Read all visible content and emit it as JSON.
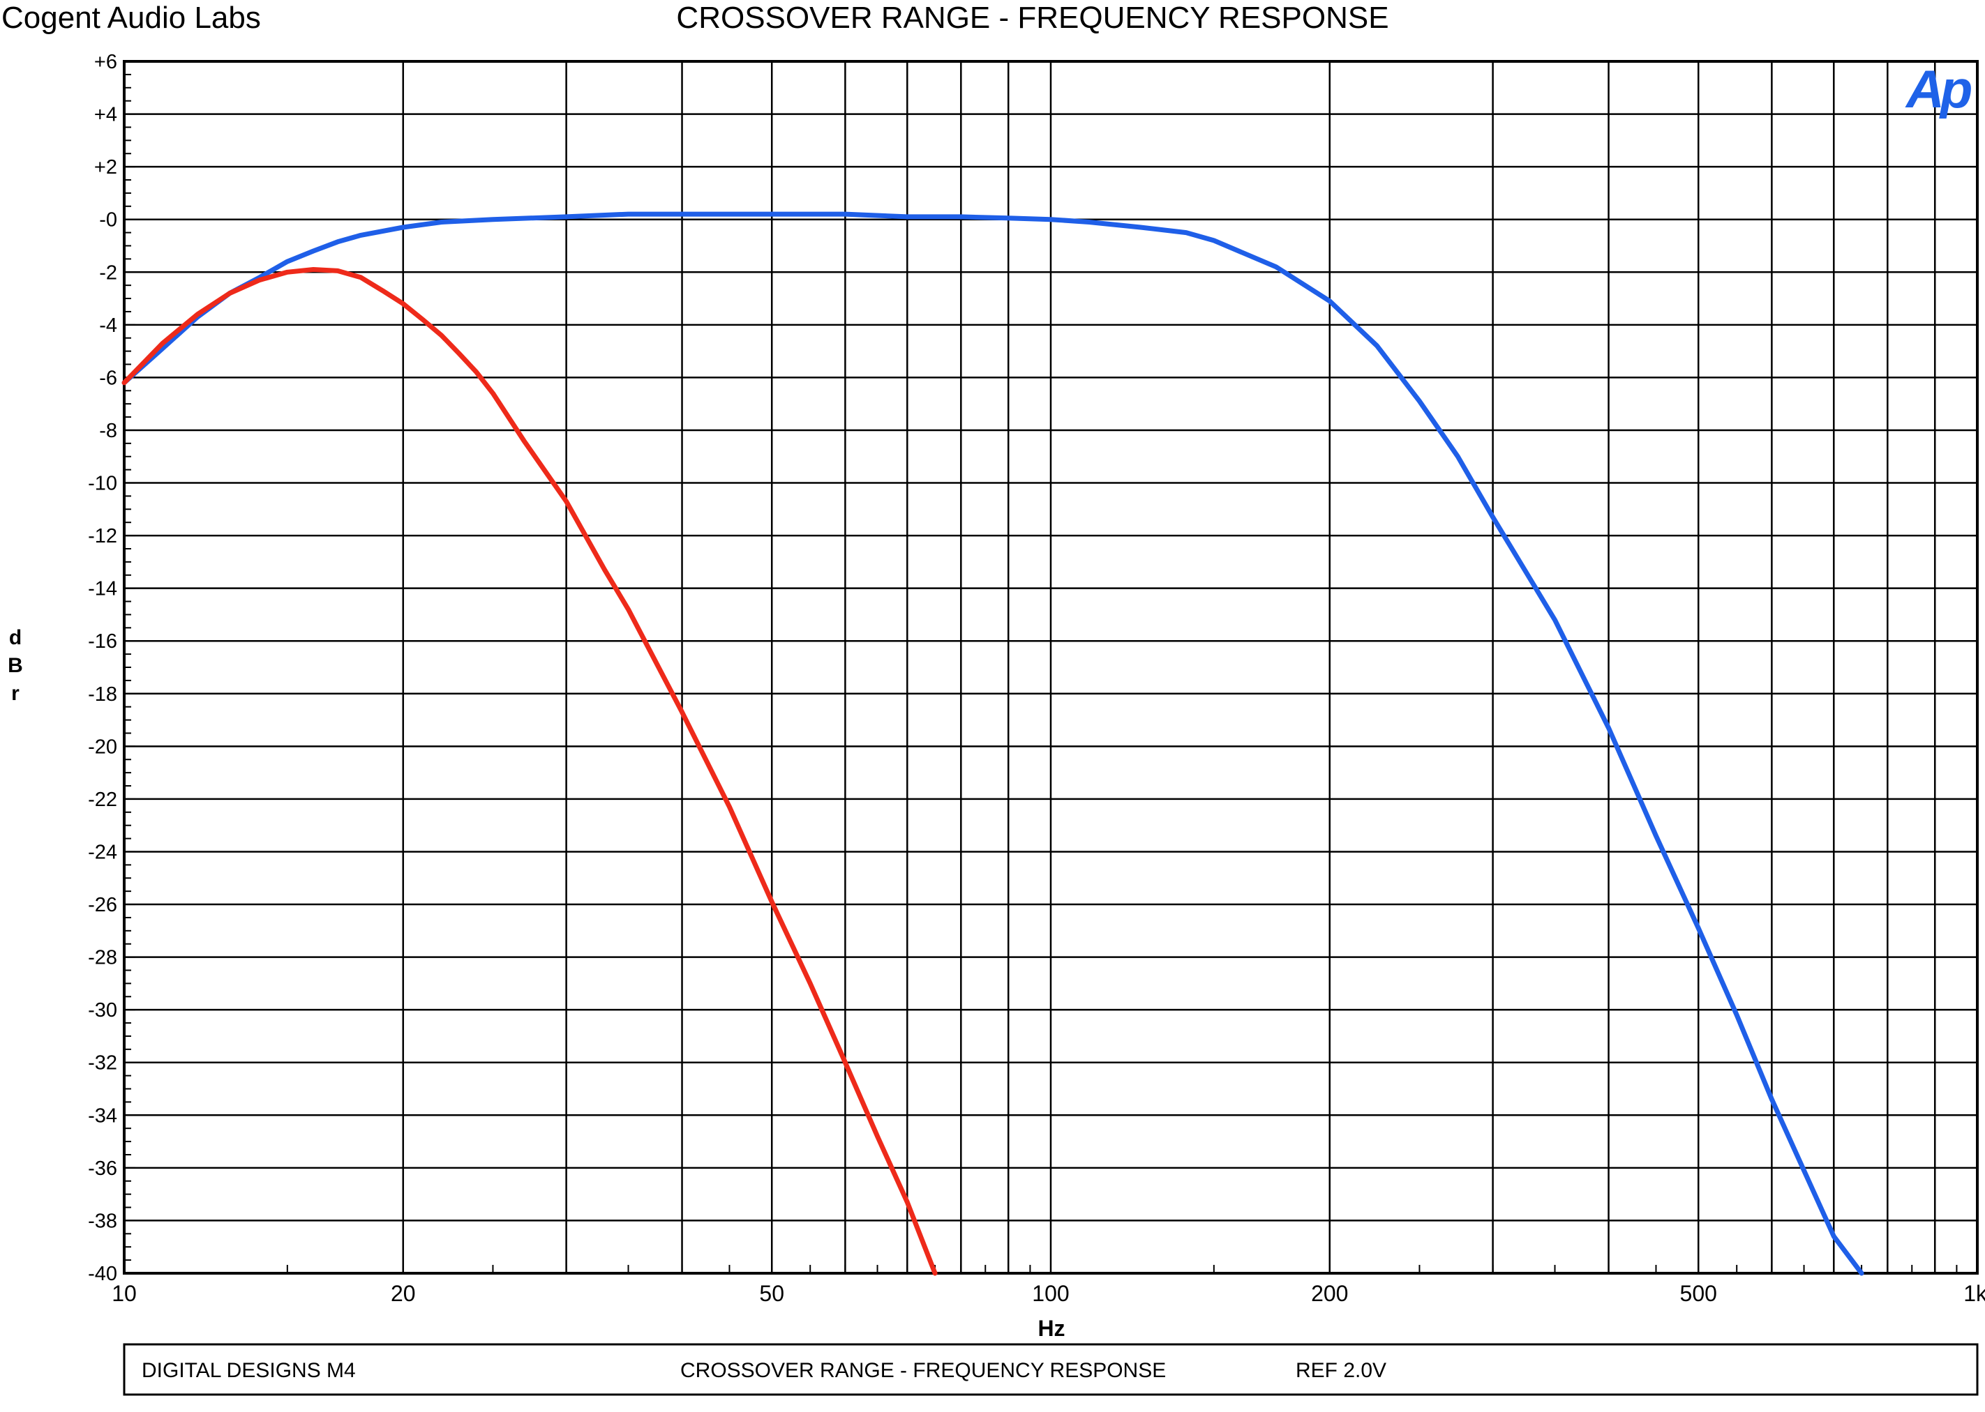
{
  "header": {
    "company": "Cogent Audio Labs",
    "title": "CROSSOVER RANGE  -  FREQUENCY RESPONSE"
  },
  "logo": {
    "text": "Ap",
    "color": "#1f62e8"
  },
  "footer": {
    "left": "DIGITAL DESIGNS M4",
    "center": "CROSSOVER RANGE  -  FREQUENCY RESPONSE",
    "right": "REF 2.0V"
  },
  "chart_data": {
    "type": "line",
    "title": "CROSSOVER RANGE  -  FREQUENCY RESPONSE",
    "xlabel": "Hz",
    "ylabel": "dBr",
    "x_scale": "log",
    "xlim": [
      10,
      1000
    ],
    "ylim": [
      -40,
      6
    ],
    "grid": true,
    "x_tick_labels": [
      {
        "value": 10,
        "label": "10"
      },
      {
        "value": 20,
        "label": "20"
      },
      {
        "value": 50,
        "label": "50"
      },
      {
        "value": 100,
        "label": "100"
      },
      {
        "value": 200,
        "label": "200"
      },
      {
        "value": 500,
        "label": "500"
      },
      {
        "value": 1000,
        "label": "1k"
      }
    ],
    "y_tick_labels": [
      {
        "value": 6,
        "label": "+6"
      },
      {
        "value": 4,
        "label": "+4"
      },
      {
        "value": 2,
        "label": "+2"
      },
      {
        "value": 0,
        "label": "-0"
      },
      {
        "value": -2,
        "label": "-2"
      },
      {
        "value": -4,
        "label": "-4"
      },
      {
        "value": -6,
        "label": "-6"
      },
      {
        "value": -8,
        "label": "-8"
      },
      {
        "value": -10,
        "label": "-10"
      },
      {
        "value": -12,
        "label": "-12"
      },
      {
        "value": -14,
        "label": "-14"
      },
      {
        "value": -16,
        "label": "-16"
      },
      {
        "value": -18,
        "label": "-18"
      },
      {
        "value": -20,
        "label": "-20"
      },
      {
        "value": -22,
        "label": "-22"
      },
      {
        "value": -24,
        "label": "-24"
      },
      {
        "value": -26,
        "label": "-26"
      },
      {
        "value": -28,
        "label": "-28"
      },
      {
        "value": -30,
        "label": "-30"
      },
      {
        "value": -32,
        "label": "-32"
      },
      {
        "value": -34,
        "label": "-34"
      },
      {
        "value": -36,
        "label": "-36"
      },
      {
        "value": -38,
        "label": "-38"
      },
      {
        "value": -40,
        "label": "-40"
      }
    ],
    "series": [
      {
        "color": "#1f5fe8",
        "points": [
          [
            10,
            -6.2
          ],
          [
            11,
            -4.9
          ],
          [
            12,
            -3.7
          ],
          [
            13,
            -2.8
          ],
          [
            14,
            -2.2
          ],
          [
            15,
            -1.6
          ],
          [
            16,
            -1.2
          ],
          [
            17,
            -0.85
          ],
          [
            18,
            -0.6
          ],
          [
            20,
            -0.3
          ],
          [
            22,
            -0.1
          ],
          [
            25,
            0.0
          ],
          [
            30,
            0.1
          ],
          [
            35,
            0.2
          ],
          [
            40,
            0.2
          ],
          [
            50,
            0.2
          ],
          [
            60,
            0.2
          ],
          [
            70,
            0.1
          ],
          [
            80,
            0.1
          ],
          [
            90,
            0.05
          ],
          [
            100,
            0.0
          ],
          [
            110,
            -0.1
          ],
          [
            125,
            -0.3
          ],
          [
            140,
            -0.5
          ],
          [
            150,
            -0.8
          ],
          [
            175,
            -1.8
          ],
          [
            200,
            -3.1
          ],
          [
            225,
            -4.8
          ],
          [
            250,
            -6.9
          ],
          [
            275,
            -9.0
          ],
          [
            300,
            -11.3
          ],
          [
            350,
            -15.2
          ],
          [
            400,
            -19.3
          ],
          [
            450,
            -23.4
          ],
          [
            500,
            -26.9
          ],
          [
            550,
            -30.2
          ],
          [
            600,
            -33.4
          ],
          [
            650,
            -36.1
          ],
          [
            700,
            -38.6
          ],
          [
            750,
            -40.0
          ]
        ]
      },
      {
        "color": "#ee2a1a",
        "points": [
          [
            10,
            -6.2
          ],
          [
            11,
            -4.7
          ],
          [
            12,
            -3.6
          ],
          [
            13,
            -2.8
          ],
          [
            14,
            -2.3
          ],
          [
            15,
            -2.0
          ],
          [
            16,
            -1.9
          ],
          [
            17,
            -1.95
          ],
          [
            18,
            -2.2
          ],
          [
            19,
            -2.7
          ],
          [
            20,
            -3.2
          ],
          [
            21,
            -3.8
          ],
          [
            22,
            -4.4
          ],
          [
            23,
            -5.1
          ],
          [
            24,
            -5.8
          ],
          [
            25,
            -6.6
          ],
          [
            27,
            -8.4
          ],
          [
            30,
            -10.7
          ],
          [
            33,
            -13.3
          ],
          [
            35,
            -14.8
          ],
          [
            40,
            -18.7
          ],
          [
            45,
            -22.3
          ],
          [
            50,
            -25.9
          ],
          [
            55,
            -29.0
          ],
          [
            60,
            -32.0
          ],
          [
            65,
            -34.8
          ],
          [
            70,
            -37.3
          ],
          [
            75,
            -40.0
          ]
        ]
      }
    ]
  }
}
